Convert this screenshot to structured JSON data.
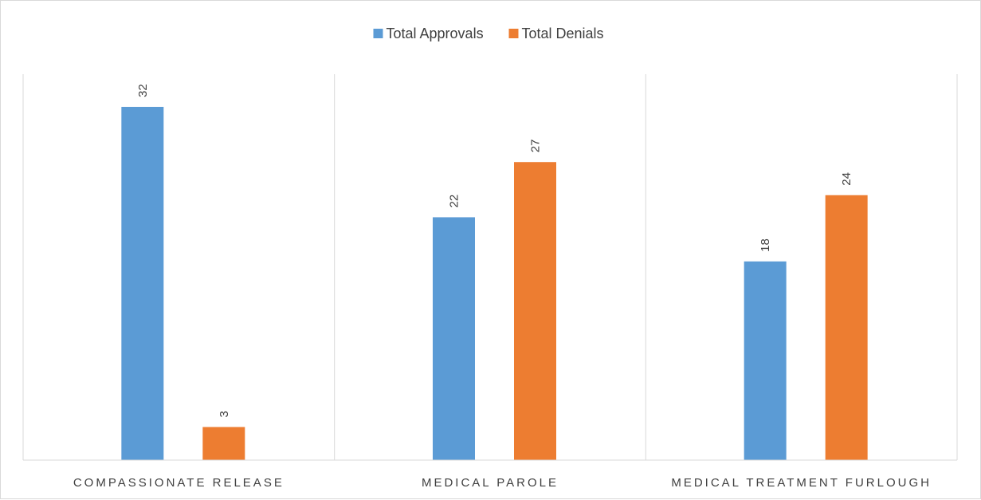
{
  "chart_data": {
    "type": "bar",
    "title": "",
    "xlabel": "",
    "ylabel": "",
    "categories": [
      "COMPASSIONATE RELEASE",
      "MEDICAL PAROLE",
      "MEDICAL TREATMENT FURLOUGH"
    ],
    "series": [
      {
        "name": "Total Approvals",
        "color": "#5B9BD5",
        "values": [
          32,
          22,
          18
        ]
      },
      {
        "name": "Total Denials",
        "color": "#ED7D31",
        "values": [
          3,
          27,
          24
        ]
      }
    ],
    "ylim": [
      0,
      32
    ],
    "grid": false,
    "legend": "top-center",
    "data_labels": true,
    "data_label_rotation": "vertical"
  }
}
